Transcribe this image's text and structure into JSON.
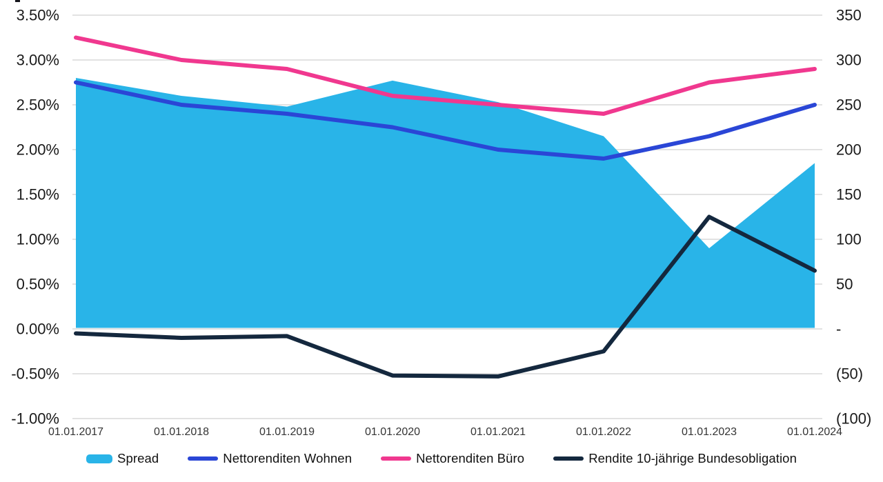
{
  "chart_data": {
    "type": "area+line",
    "title": "",
    "categories": [
      "01.01.2017",
      "01.01.2018",
      "01.01.2019",
      "01.01.2020",
      "01.01.2021",
      "01.01.2022",
      "01.01.2023",
      "01.01.2024"
    ],
    "left_axis": {
      "unit": "%",
      "ticks": [
        "3.50%",
        "3.00%",
        "2.50%",
        "2.00%",
        "1.50%",
        "1.00%",
        "0.50%",
        "0.00%",
        "-0.50%",
        "-1.00%"
      ],
      "tick_values": [
        3.5,
        3.0,
        2.5,
        2.0,
        1.5,
        1.0,
        0.5,
        0.0,
        -0.5,
        -1.0
      ],
      "min": -1.0,
      "max": 3.5
    },
    "right_axis": {
      "unit": "bp",
      "ticks": [
        "350",
        "300",
        "250",
        "200",
        "150",
        "100",
        "50",
        "-",
        "(50)",
        "(100)"
      ],
      "tick_values": [
        350,
        300,
        250,
        200,
        150,
        100,
        50,
        0,
        -50,
        -100
      ],
      "min": -100,
      "max": 350
    },
    "grid": "horizontal",
    "legend_position": "bottom",
    "series": [
      {
        "name": "Spread",
        "type": "area",
        "axis": "right",
        "unit": "bp",
        "color": "#29b4e8",
        "values": [
          280,
          260,
          248,
          277,
          253,
          215,
          90,
          185
        ]
      },
      {
        "name": "Nettorenditen Wohnen",
        "type": "line",
        "axis": "left",
        "unit": "%",
        "color": "#2a46d6",
        "values": [
          2.75,
          2.5,
          2.4,
          2.25,
          2.0,
          1.9,
          2.15,
          2.5
        ]
      },
      {
        "name": "Nettorenditen Büro",
        "type": "line",
        "axis": "left",
        "unit": "%",
        "color": "#f0388f",
        "values": [
          3.25,
          3.0,
          2.9,
          2.6,
          2.5,
          2.4,
          2.75,
          2.9
        ]
      },
      {
        "name": "Rendite 10-jährige Bundesobligation",
        "type": "line",
        "axis": "right",
        "unit": "bp",
        "color": "#14283e",
        "values": [
          -5,
          -10,
          -8,
          -52,
          -53,
          -25,
          125,
          65
        ]
      }
    ],
    "colors": {
      "gridline": "#d9d9d9",
      "y_axis_text": "#1a1a1a",
      "x_axis_text": "#333333",
      "legend_text": "#111111",
      "background": "#ffffff"
    }
  }
}
